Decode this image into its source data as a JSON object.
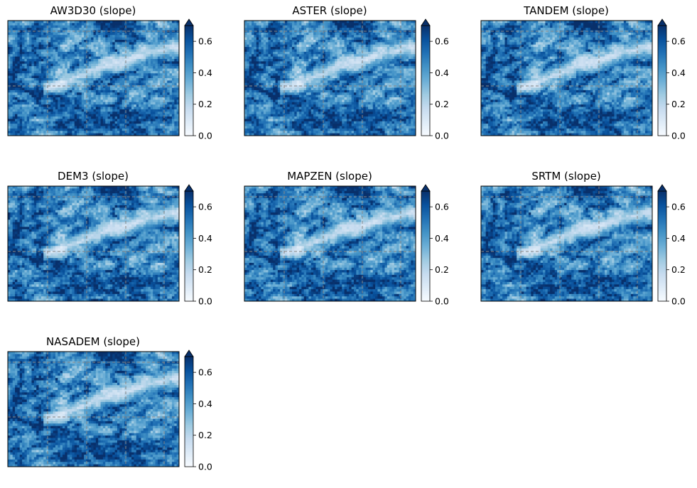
{
  "chart_data": [
    {
      "type": "heatmap",
      "title": "AW3D30 (slope)",
      "colormap": "Blues",
      "colorbar": {
        "range": [
          0.0,
          0.7
        ],
        "extend": "max",
        "ticks": [
          "0.0",
          "0.2",
          "0.4",
          "0.6"
        ]
      },
      "grid": true,
      "grid_style": "dashed gray"
    },
    {
      "type": "heatmap",
      "title": "ASTER (slope)",
      "colormap": "Blues",
      "colorbar": {
        "range": [
          0.0,
          0.7
        ],
        "extend": "max",
        "ticks": [
          "0.0",
          "0.2",
          "0.4",
          "0.6"
        ]
      },
      "grid": true,
      "grid_style": "dashed gray"
    },
    {
      "type": "heatmap",
      "title": "TANDEM (slope)",
      "colormap": "Blues",
      "colorbar": {
        "range": [
          0.0,
          0.7
        ],
        "extend": "max",
        "ticks": [
          "0.0",
          "0.2",
          "0.4",
          "0.6"
        ]
      },
      "grid": true,
      "grid_style": "dashed gray"
    },
    {
      "type": "heatmap",
      "title": "DEM3 (slope)",
      "colormap": "Blues",
      "colorbar": {
        "range": [
          0.0,
          0.7
        ],
        "extend": "max",
        "ticks": [
          "0.0",
          "0.2",
          "0.4",
          "0.6"
        ]
      },
      "grid": true,
      "grid_style": "dashed gray"
    },
    {
      "type": "heatmap",
      "title": "MAPZEN (slope)",
      "colormap": "Blues",
      "colorbar": {
        "range": [
          0.0,
          0.7
        ],
        "extend": "max",
        "ticks": [
          "0.0",
          "0.2",
          "0.4",
          "0.6"
        ]
      },
      "grid": true,
      "grid_style": "dashed gray"
    },
    {
      "type": "heatmap",
      "title": "SRTM (slope)",
      "colormap": "Blues",
      "colorbar": {
        "range": [
          0.0,
          0.7
        ],
        "extend": "max",
        "ticks": [
          "0.0",
          "0.2",
          "0.4",
          "0.6"
        ]
      },
      "grid": true,
      "grid_style": "dashed gray"
    },
    {
      "type": "heatmap",
      "title": "NASADEM (slope)",
      "colormap": "Blues",
      "colorbar": {
        "range": [
          0.0,
          0.7
        ],
        "extend": "max",
        "ticks": [
          "0.0",
          "0.2",
          "0.4",
          "0.6"
        ]
      },
      "grid": true,
      "grid_style": "dashed gray"
    }
  ]
}
